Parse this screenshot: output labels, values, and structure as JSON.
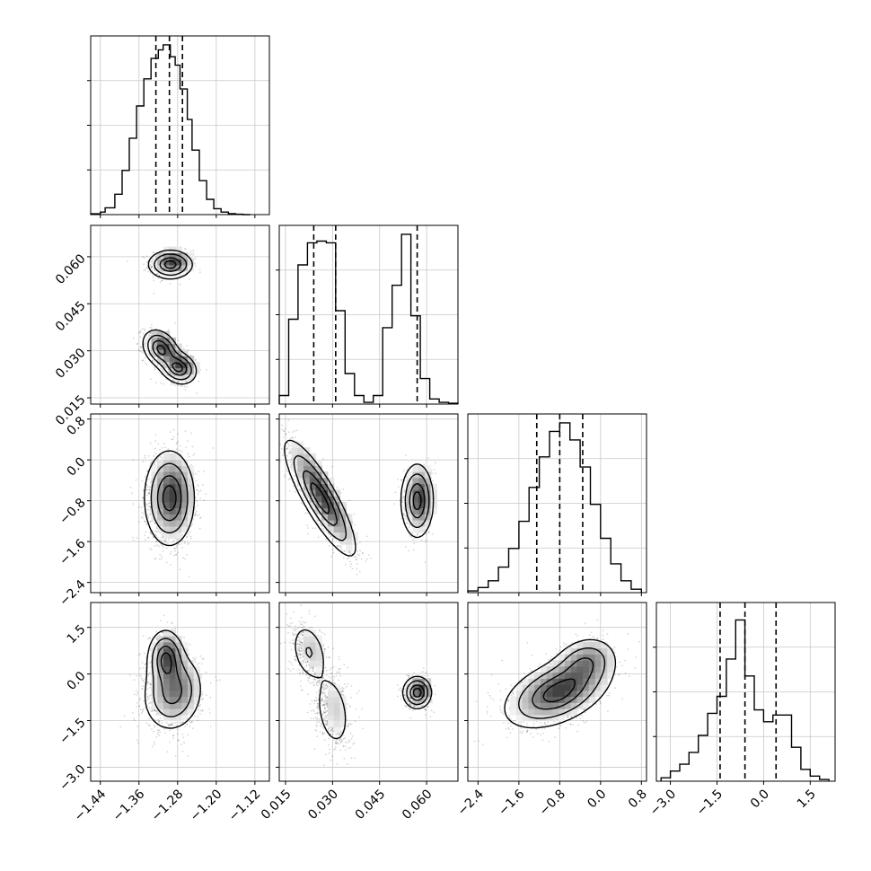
{
  "chart_data": {
    "type": "corner",
    "layout": "lower-triangle 4x4 grid: 1-D histograms on the diagonal, 2-D density contours with scatter below",
    "grid": true,
    "quantile_lines": "dashed vertical lines at 16th, 50th, 84th percentiles on each histogram",
    "parameters": [
      {
        "index": 0,
        "range": [
          -1.46,
          -1.09
        ],
        "ticks": [
          -1.44,
          -1.36,
          -1.28,
          -1.2,
          -1.12
        ],
        "tick_labels": [
          "−1.44",
          "−1.36",
          "−1.28",
          "−1.20",
          "−1.12"
        ],
        "quantiles": [
          -1.325,
          -1.297,
          -1.27
        ],
        "histogram": {
          "bin_edges": [
            -1.46,
            -1.44,
            -1.43,
            -1.41,
            -1.395,
            -1.38,
            -1.365,
            -1.35,
            -1.335,
            -1.32,
            -1.31,
            -1.295,
            -1.285,
            -1.275,
            -1.26,
            -1.25,
            -1.235,
            -1.22,
            -1.205,
            -1.19,
            -1.175,
            -1.16,
            -1.145,
            -1.13
          ],
          "counts": [
            0.005,
            0.015,
            0.04,
            0.12,
            0.26,
            0.45,
            0.64,
            0.8,
            0.92,
            0.97,
            1.0,
            0.93,
            0.88,
            0.74,
            0.56,
            0.38,
            0.2,
            0.09,
            0.035,
            0.015,
            0.006,
            0.002,
            0.0
          ]
        }
      },
      {
        "index": 1,
        "range": [
          0.013,
          0.07
        ],
        "ticks": [
          0.015,
          0.03,
          0.045,
          0.06
        ],
        "tick_labels": [
          "0.015",
          "0.030",
          "0.045",
          "0.060"
        ],
        "quantiles": [
          0.024,
          0.031,
          0.057
        ],
        "histogram": {
          "bin_edges": [
            0.013,
            0.016,
            0.019,
            0.022,
            0.025,
            0.028,
            0.031,
            0.034,
            0.037,
            0.04,
            0.043,
            0.046,
            0.049,
            0.052,
            0.055,
            0.058,
            0.061,
            0.064,
            0.067,
            0.07
          ],
          "counts": [
            0.05,
            0.5,
            0.82,
            0.95,
            0.96,
            0.95,
            0.55,
            0.18,
            0.05,
            0.01,
            0.05,
            0.45,
            0.7,
            1.0,
            0.52,
            0.15,
            0.03,
            0.01,
            0.005
          ]
        }
      },
      {
        "index": 2,
        "range": [
          -2.6,
          0.9
        ],
        "ticks": [
          -2.4,
          -1.6,
          -0.8,
          0.0,
          0.8
        ],
        "tick_labels": [
          "−2.4",
          "−1.6",
          "−0.8",
          "0.0",
          "0.8"
        ],
        "quantiles": [
          -1.25,
          -0.8,
          -0.35
        ],
        "histogram": {
          "bin_edges": [
            -2.6,
            -2.4,
            -2.2,
            -2.0,
            -1.8,
            -1.6,
            -1.4,
            -1.2,
            -1.0,
            -0.8,
            -0.6,
            -0.4,
            -0.2,
            0.0,
            0.2,
            0.4,
            0.6,
            0.8
          ],
          "counts": [
            0.01,
            0.03,
            0.07,
            0.15,
            0.26,
            0.42,
            0.62,
            0.8,
            0.95,
            1.0,
            0.9,
            0.74,
            0.52,
            0.32,
            0.17,
            0.07,
            0.02
          ]
        }
      },
      {
        "index": 3,
        "range": [
          -3.45,
          2.3
        ],
        "ticks": [
          -3.0,
          -1.5,
          0.0,
          1.5
        ],
        "tick_labels": [
          "−3.0",
          "−1.5",
          "0.0",
          "1.5"
        ],
        "quantiles": [
          -1.4,
          -0.6,
          0.4
        ],
        "histogram": {
          "bin_edges": [
            -3.3,
            -3.0,
            -2.7,
            -2.4,
            -2.1,
            -1.8,
            -1.5,
            -1.2,
            -0.9,
            -0.6,
            -0.3,
            0.0,
            0.3,
            0.6,
            0.9,
            1.2,
            1.5,
            1.8,
            2.1
          ],
          "counts": [
            0.02,
            0.06,
            0.1,
            0.17,
            0.27,
            0.4,
            0.5,
            0.72,
            0.95,
            0.62,
            0.42,
            0.35,
            0.39,
            0.39,
            0.2,
            0.07,
            0.03,
            0.01
          ]
        }
      }
    ],
    "pairs": [
      {
        "x": 0,
        "y": 1,
        "clusters": [
          {
            "mean": [
              -1.295,
              0.0575
            ],
            "sd": [
              0.022,
              0.0022
            ],
            "rho": 0.0,
            "weight": 0.35
          },
          {
            "mean": [
              -1.315,
              0.0305
            ],
            "sd": [
              0.018,
              0.003
            ],
            "rho": -0.3,
            "weight": 0.35
          },
          {
            "mean": [
              -1.278,
              0.0245
            ],
            "sd": [
              0.018,
              0.0025
            ],
            "rho": -0.2,
            "weight": 0.3
          }
        ]
      },
      {
        "x": 0,
        "y": 2,
        "clusters": [
          {
            "mean": [
              -1.297,
              -0.75
            ],
            "sd": [
              0.025,
              0.45
            ],
            "rho": 0.0,
            "weight": 1.0
          }
        ]
      },
      {
        "x": 0,
        "y": 3,
        "clusters": [
          {
            "mean": [
              -1.29,
              -0.6
            ],
            "sd": [
              0.03,
              0.6
            ],
            "rho": 0.1,
            "weight": 0.65
          },
          {
            "mean": [
              -1.305,
              0.5
            ],
            "sd": [
              0.018,
              0.45
            ],
            "rho": 0.0,
            "weight": 0.35
          }
        ]
      },
      {
        "x": 1,
        "y": 2,
        "clusters": [
          {
            "mean": [
              0.026,
              -0.75
            ],
            "sd": [
              0.0055,
              0.55
            ],
            "rho": -0.85,
            "weight": 0.65
          },
          {
            "mean": [
              0.057,
              -0.8
            ],
            "sd": [
              0.0025,
              0.35
            ],
            "rho": 0.0,
            "weight": 0.35
          }
        ]
      },
      {
        "x": 1,
        "y": 3,
        "clusters": [
          {
            "mean": [
              0.0225,
              0.7
            ],
            "sd": [
              0.003,
              0.5
            ],
            "rho": -0.3,
            "weight": 0.3
          },
          {
            "mean": [
              0.03,
              -1.2
            ],
            "sd": [
              0.003,
              0.65
            ],
            "rho": -0.3,
            "weight": 0.35
          },
          {
            "mean": [
              0.057,
              -0.6
            ],
            "sd": [
              0.0022,
              0.25
            ],
            "rho": 0.0,
            "weight": 0.35
          }
        ]
      },
      {
        "x": 2,
        "y": 3,
        "clusters": [
          {
            "mean": [
              -0.85,
              -0.6
            ],
            "sd": [
              0.5,
              0.55
            ],
            "rho": 0.45,
            "weight": 0.8
          },
          {
            "mean": [
              -0.3,
              0.4
            ],
            "sd": [
              0.3,
              0.4
            ],
            "rho": 0.2,
            "weight": 0.2
          }
        ]
      }
    ]
  }
}
